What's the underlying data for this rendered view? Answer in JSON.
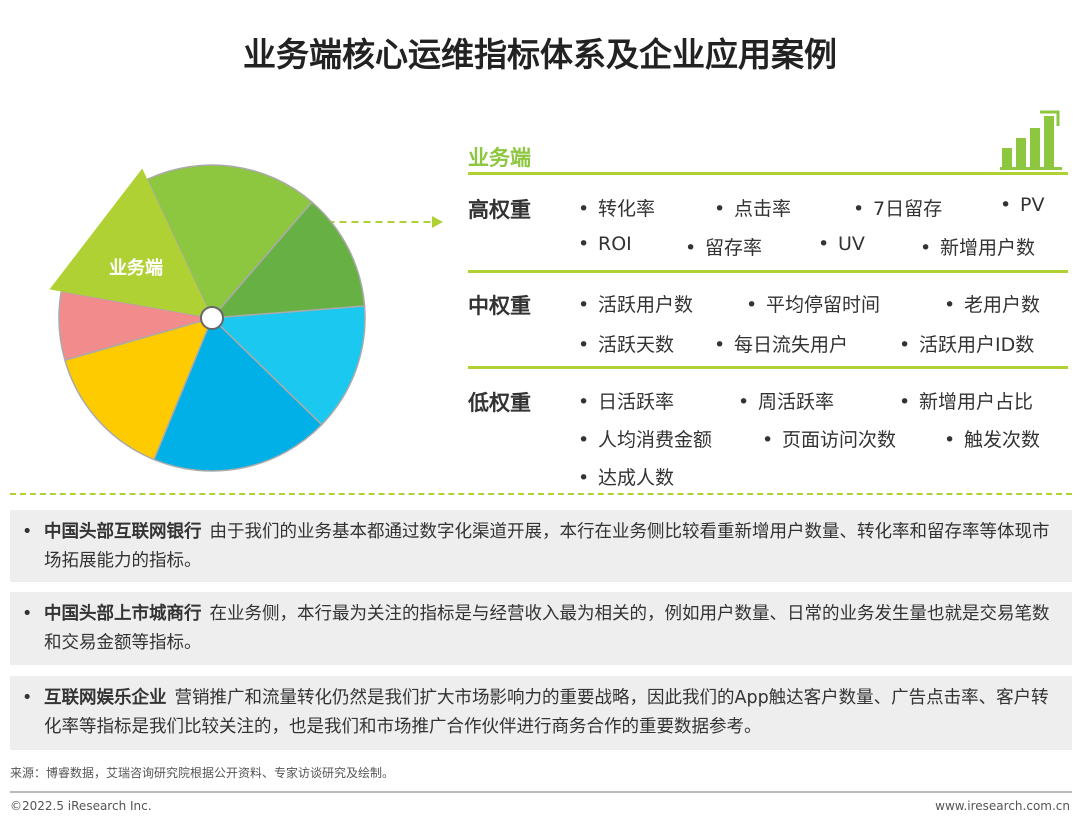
{
  "title": "业务端核心运维指标体系及企业应用案例",
  "pie": {
    "label": "业务端",
    "colors": {
      "highlight": "#b0d134",
      "green": "#8dc63f",
      "dark_green": "#67b044",
      "light_blue": "#1ac8f0",
      "blue": "#00b0e6",
      "yellow": "#fecb00",
      "pink": "#f28b8c"
    }
  },
  "section": {
    "title": "业务端",
    "icon": "bar-chart-icon"
  },
  "groups": [
    {
      "label": "高权重",
      "items": [
        "转化率",
        "点击率",
        "7日留存",
        "PV",
        "ROI",
        "留存率",
        "UV",
        "新增用户数"
      ]
    },
    {
      "label": "中权重",
      "items": [
        "活跃用户数",
        "平均停留时间",
        "老用户数",
        "活跃天数",
        "每日流失用户",
        "活跃用户ID数"
      ]
    },
    {
      "label": "低权重",
      "items": [
        "日活跃率",
        "周活跃率",
        "新增用户占比",
        "人均消费金额",
        "页面访问次数",
        "触发次数",
        "达成人数"
      ]
    }
  ],
  "bullet": "•",
  "cases": [
    {
      "org": "中国头部互联网银行",
      "text": "由于我们的业务基本都通过数字化渠道开展，本行在业务侧比较看重新增用户数量、转化率和留存率等体现市场拓展能力的指标。"
    },
    {
      "org": "中国头部上市城商行",
      "text": "在业务侧，本行最为关注的指标是与经营收入最为相关的，例如用户数量、日常的业务发生量也就是交易笔数和交易金额等指标。"
    },
    {
      "org": "互联网娱乐企业",
      "text": "营销推广和流量转化仍然是我们扩大市场影响力的重要战略，因此我们的App触达客户数量、广告点击率、客户转化率等指标是我们比较关注的，也是我们和市场推广合作伙伴进行商务合作的重要数据参考。"
    }
  ],
  "footer": {
    "source": "来源：博睿数据，艾瑞咨询研究院根据公开资料、专家访谈研究及绘制。",
    "copyright": "©2022.5 iResearch Inc.",
    "site": "www.iresearch.com.cn"
  }
}
